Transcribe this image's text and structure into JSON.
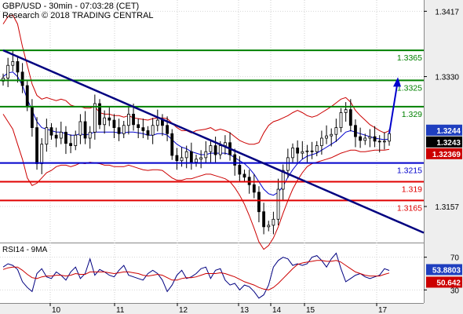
{
  "header": {
    "title": "GBP/USD - 30min - 07:03:28 (CET)",
    "copyright": "Research © 2018 TRADING CENTRAL"
  },
  "colors": {
    "resistance": "#008000",
    "support": "#e00000",
    "pivot": "#0000cc",
    "trendline": "#000080",
    "candle": "#000000",
    "bollinger": "#cc0000",
    "moving_average": "#0000cc",
    "rsi": "#000080",
    "rsi_signal": "#cc0000",
    "forecast_arrow": "#0000cc",
    "price_tag_blue": "#1f3fbf",
    "price_tag_black": "#000000",
    "price_tag_red": "#cc0000"
  },
  "chart_data": [
    {
      "type": "candlestick",
      "title": "GBP/USD - 30min - 07:03:28 (CET)",
      "ylim": [
        1.311,
        1.3432
      ],
      "y_ticks": [
        "1.3417",
        "1.3330",
        "1.3157"
      ],
      "x_ticks": [
        "10",
        "11",
        "12",
        "13",
        "14",
        "15",
        "17"
      ],
      "levels": [
        {
          "name": "resistance",
          "label": "1.3365",
          "value": 1.3365
        },
        {
          "name": "resistance",
          "label": "1.3325",
          "value": 1.3325
        },
        {
          "name": "resistance",
          "label": "1.329",
          "value": 1.329
        },
        {
          "name": "pivot",
          "label": "1.3215",
          "value": 1.3215
        },
        {
          "name": "support",
          "label": "1.319",
          "value": 1.319
        },
        {
          "name": "support",
          "label": "1.3165",
          "value": 1.3165
        }
      ],
      "price_tags": [
        {
          "label": "1.3244",
          "value": 1.3244,
          "style": "blue"
        },
        {
          "label": "1.3243",
          "value": 1.3243,
          "style": "black"
        },
        {
          "label": "1.32369",
          "value": 1.32369,
          "style": "red"
        }
      ],
      "trendline": {
        "start": {
          "x": 0,
          "y": 1.3365
        },
        "end": {
          "x": 1,
          "y": 1.3122
        }
      },
      "forecast_target": 1.3325,
      "close_series": [
        1.3328,
        1.3345,
        1.335,
        1.3336,
        1.3318,
        1.329,
        1.3262,
        1.3214,
        1.324,
        1.3262,
        1.3252,
        1.3248,
        1.3256,
        1.3241,
        1.3238,
        1.3252,
        1.327,
        1.3248,
        1.3256,
        1.3294,
        1.3266,
        1.3275,
        1.3272,
        1.3262,
        1.3254,
        1.3265,
        1.328,
        1.3266,
        1.3262,
        1.3258,
        1.3252,
        1.3265,
        1.3272,
        1.3265,
        1.3254,
        1.3225,
        1.3218,
        1.3222,
        1.323,
        1.3216,
        1.322,
        1.3222,
        1.323,
        1.3238,
        1.3226,
        1.3238,
        1.3242,
        1.3226,
        1.3212,
        1.32,
        1.3196,
        1.3186,
        1.3176,
        1.315,
        1.313,
        1.3132,
        1.314,
        1.318,
        1.3205,
        1.3222,
        1.3235,
        1.3228,
        1.323,
        1.3231,
        1.323,
        1.3238,
        1.3248,
        1.3251,
        1.3253,
        1.3262,
        1.3282,
        1.3286,
        1.3265,
        1.325,
        1.3245,
        1.3248,
        1.325,
        1.3244,
        1.3243,
        1.3244,
        1.3254
      ],
      "bollinger_upper": [
        1.34,
        1.341,
        1.3412,
        1.34,
        1.337,
        1.3345,
        1.332,
        1.3305,
        1.33,
        1.3302,
        1.33,
        1.3298,
        1.33,
        1.3298,
        1.3292,
        1.329,
        1.329,
        1.3288,
        1.3288,
        1.329,
        1.3282,
        1.328,
        1.328,
        1.3278,
        1.3278,
        1.3276,
        1.3278,
        1.3275,
        1.3274,
        1.3273,
        1.3272,
        1.3274,
        1.3275,
        1.3275,
        1.3274,
        1.3268,
        1.3262,
        1.3258,
        1.3258,
        1.3255,
        1.3258,
        1.3259,
        1.326,
        1.3262,
        1.3258,
        1.326,
        1.3258,
        1.3255,
        1.325,
        1.3245,
        1.3242,
        1.324,
        1.324,
        1.3242,
        1.3255,
        1.3265,
        1.327,
        1.3272,
        1.3275,
        1.3278,
        1.3282,
        1.3285,
        1.3282,
        1.3278,
        1.3276,
        1.3278,
        1.3282,
        1.3286,
        1.329,
        1.3295,
        1.33,
        1.3302,
        1.3296,
        1.3285,
        1.3278,
        1.3272,
        1.3266,
        1.3262,
        1.3258,
        1.3255,
        1.3258
      ],
      "bollinger_lower": [
        1.328,
        1.327,
        1.326,
        1.324,
        1.322,
        1.3195,
        1.3185,
        1.3188,
        1.3195,
        1.3202,
        1.3205,
        1.321,
        1.3212,
        1.3212,
        1.321,
        1.3212,
        1.3215,
        1.3214,
        1.3216,
        1.3215,
        1.3214,
        1.3212,
        1.3212,
        1.321,
        1.321,
        1.321,
        1.3212,
        1.321,
        1.3208,
        1.3206,
        1.3205,
        1.3206,
        1.3206,
        1.3205,
        1.32,
        1.3195,
        1.3192,
        1.3192,
        1.3194,
        1.3194,
        1.3196,
        1.3198,
        1.32,
        1.32,
        1.3198,
        1.3196,
        1.3194,
        1.319,
        1.3182,
        1.3172,
        1.316,
        1.3145,
        1.3128,
        1.311,
        1.31,
        1.3105,
        1.3115,
        1.313,
        1.3148,
        1.3165,
        1.318,
        1.3192,
        1.3202,
        1.321,
        1.3214,
        1.3216,
        1.3218,
        1.322,
        1.3222,
        1.3225,
        1.3228,
        1.323,
        1.3232,
        1.3232,
        1.323,
        1.323,
        1.3231,
        1.3232,
        1.3232,
        1.3232,
        1.3233
      ],
      "moving_average": [
        1.333,
        1.3335,
        1.3336,
        1.333,
        1.3318,
        1.33,
        1.3285,
        1.327,
        1.3262,
        1.326,
        1.3258,
        1.3256,
        1.3256,
        1.3254,
        1.3252,
        1.3252,
        1.3254,
        1.3252,
        1.3254,
        1.3256,
        1.3256,
        1.3256,
        1.3256,
        1.3256,
        1.3255,
        1.3255,
        1.3256,
        1.3256,
        1.3255,
        1.3254,
        1.3252,
        1.3252,
        1.3254,
        1.3254,
        1.3252,
        1.3246,
        1.324,
        1.3236,
        1.3234,
        1.323,
        1.3228,
        1.3226,
        1.3226,
        1.3228,
        1.3228,
        1.3228,
        1.3228,
        1.3226,
        1.3222,
        1.3218,
        1.3214,
        1.3208,
        1.32,
        1.319,
        1.318,
        1.3174,
        1.3172,
        1.3176,
        1.3184,
        1.3196,
        1.3206,
        1.3214,
        1.322,
        1.3224,
        1.3226,
        1.3228,
        1.3232,
        1.3236,
        1.324,
        1.3244,
        1.325,
        1.3256,
        1.3258,
        1.3256,
        1.3254,
        1.3252,
        1.325,
        1.3248,
        1.3247,
        1.3246,
        1.3247
      ]
    },
    {
      "type": "line",
      "title": "RSI14 - 9MA",
      "ylim": [
        14,
        86
      ],
      "y_ticks": [
        "70",
        "30"
      ],
      "series": [
        {
          "name": "RSI14",
          "values": [
            58,
            62,
            60,
            55,
            40,
            33,
            28,
            50,
            56,
            46,
            44,
            52,
            48,
            42,
            52,
            58,
            44,
            50,
            68,
            48,
            55,
            52,
            48,
            46,
            54,
            60,
            48,
            46,
            44,
            42,
            50,
            54,
            50,
            42,
            28,
            36,
            48,
            54,
            44,
            46,
            50,
            56,
            58,
            44,
            54,
            56,
            42,
            36,
            38,
            30,
            36,
            34,
            28,
            20,
            24,
            36,
            58,
            66,
            70,
            68,
            60,
            62,
            60,
            62,
            70,
            72,
            66,
            58,
            68,
            75,
            56,
            40,
            44,
            48,
            50,
            46,
            44,
            46,
            48,
            56,
            53.8803
          ]
        },
        {
          "name": "9MA",
          "values": [
            55,
            57,
            58,
            58,
            54,
            49,
            45,
            44,
            46,
            47,
            47,
            48,
            48,
            47,
            48,
            50,
            49,
            49,
            52,
            52,
            52,
            52,
            51,
            50,
            51,
            52,
            52,
            51,
            50,
            48,
            47,
            48,
            49,
            48,
            45,
            42,
            42,
            44,
            45,
            45,
            46,
            48,
            50,
            50,
            50,
            51,
            50,
            48,
            46,
            43,
            40,
            38,
            36,
            33,
            31,
            30,
            33,
            38,
            44,
            50,
            56,
            61,
            63,
            64,
            65,
            66,
            66,
            65,
            65,
            66,
            64,
            60,
            56,
            52,
            50,
            48,
            47,
            47,
            47,
            49,
            50.642
          ]
        }
      ],
      "price_tags": [
        {
          "label": "53.8803",
          "value": 53.8803,
          "style": "blue"
        },
        {
          "label": "50.642",
          "value": 50.642,
          "style": "red"
        }
      ]
    }
  ]
}
